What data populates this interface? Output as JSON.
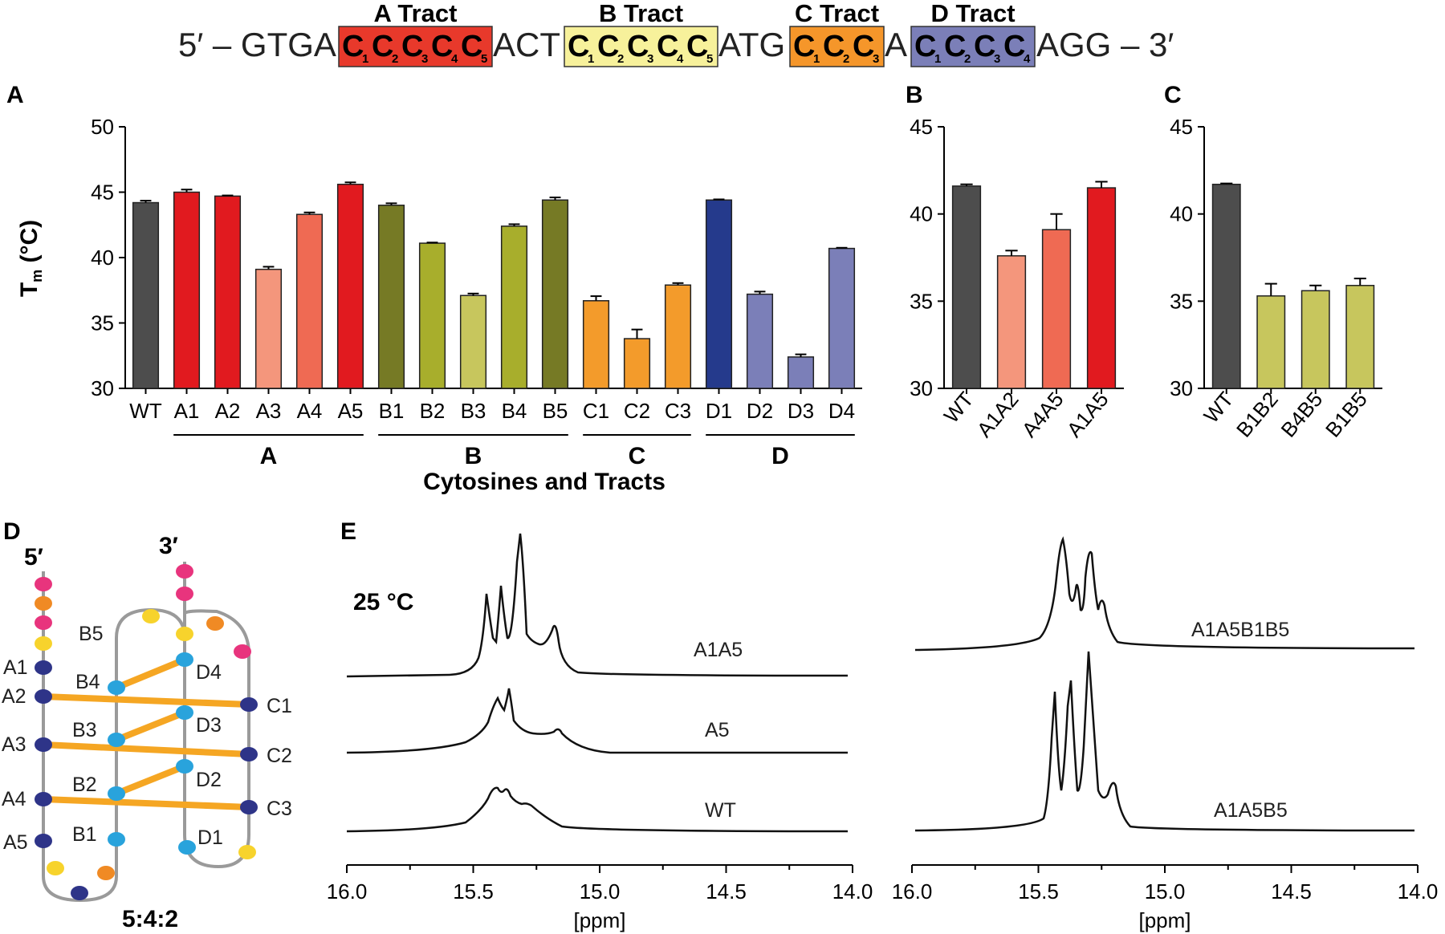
{
  "figure": {
    "sequence": {
      "prefix": "5′ – GTGA",
      "suffix": "AGG – 3′",
      "tracts": [
        {
          "title": "A Tract",
          "color": "#e8392b",
          "count": 5,
          "after": "ACT"
        },
        {
          "title": "B Tract",
          "color": "#f7f19b",
          "count": 5,
          "after": "ATG"
        },
        {
          "title": "C Tract",
          "color": "#f5962a",
          "count": 3,
          "after": "A"
        },
        {
          "title": "D Tract",
          "color": "#7b7fb8",
          "count": 4,
          "after": ""
        }
      ],
      "cytosine_letter": "C"
    },
    "panels": {
      "A": "A",
      "B": "B",
      "C": "C",
      "D": "D",
      "E": "E"
    },
    "diagram": {
      "end5": "5′",
      "end3": "3′",
      "caption": "5:4:2",
      "left_labels": [
        "A1",
        "A2",
        "A3",
        "A4",
        "A5"
      ],
      "mid_labels": [
        "B5",
        "B4",
        "B3",
        "B2",
        "B1"
      ],
      "right_d_labels": [
        "D4",
        "D3",
        "D2",
        "D1"
      ],
      "right_c_labels": [
        "C1",
        "C2",
        "C3"
      ]
    },
    "nmr": {
      "temperature_label": "25 °C",
      "xlabel": "[ppm]",
      "ticks": [
        "16.0",
        "15.5",
        "15.0",
        "14.5",
        "14.0"
      ],
      "left_spectra": [
        "A1A5",
        "A5",
        "WT"
      ],
      "right_spectra": [
        "A1A5B1B5",
        "A1A5B5"
      ]
    }
  },
  "chart_data": [
    {
      "type": "bar",
      "panel": "A",
      "ylabel_main": "T",
      "ylabel_sub": "m",
      "ylabel_rest": " (°C)",
      "xlabel": "Cytosines and Tracts",
      "ylim": [
        30,
        50
      ],
      "yticks": [
        "30",
        "35",
        "40",
        "45",
        "50"
      ],
      "categories": [
        "WT",
        "A1",
        "A2",
        "A3",
        "A4",
        "A5",
        "B1",
        "B2",
        "B3",
        "B4",
        "B5",
        "C1",
        "C2",
        "C3",
        "D1",
        "D2",
        "D3",
        "D4"
      ],
      "values": [
        44.2,
        45.0,
        44.7,
        39.1,
        43.3,
        45.6,
        44.0,
        41.1,
        37.1,
        42.4,
        44.4,
        36.7,
        33.8,
        37.9,
        44.4,
        37.2,
        32.4,
        40.7
      ],
      "errors": [
        0.15,
        0.2,
        0.05,
        0.2,
        0.15,
        0.15,
        0.15,
        0.05,
        0.15,
        0.15,
        0.2,
        0.35,
        0.7,
        0.15,
        0.05,
        0.2,
        0.2,
        0.05
      ],
      "colors": [
        "#4d4d4d",
        "#e11a1f",
        "#e11a1f",
        "#f4967c",
        "#ef6a53",
        "#e11a1f",
        "#767a25",
        "#a8ae2c",
        "#c7c65d",
        "#a8ae2c",
        "#767a25",
        "#f39b2b",
        "#f39b2b",
        "#f39b2b",
        "#253a8c",
        "#7b7fb8",
        "#7b7fb8",
        "#7b7fb8"
      ],
      "groups": [
        {
          "label": "A",
          "from": 1,
          "to": 5
        },
        {
          "label": "B",
          "from": 6,
          "to": 10
        },
        {
          "label": "C",
          "from": 11,
          "to": 13
        },
        {
          "label": "D",
          "from": 14,
          "to": 17
        }
      ]
    },
    {
      "type": "bar",
      "panel": "B",
      "ylim": [
        30,
        45
      ],
      "yticks": [
        "30",
        "35",
        "40",
        "45"
      ],
      "categories": [
        "WT",
        "A1A2",
        "A4A5",
        "A1A5"
      ],
      "values": [
        41.6,
        37.6,
        39.1,
        41.5
      ],
      "errors": [
        0.1,
        0.3,
        0.9,
        0.35
      ],
      "colors": [
        "#4d4d4d",
        "#f4967c",
        "#ef6a53",
        "#e11a1f"
      ]
    },
    {
      "type": "bar",
      "panel": "C",
      "ylim": [
        30,
        45
      ],
      "yticks": [
        "30",
        "35",
        "40",
        "45"
      ],
      "categories": [
        "WT",
        "B1B2",
        "B4B5",
        "B1B5"
      ],
      "values": [
        41.7,
        35.3,
        35.6,
        35.9
      ],
      "errors": [
        0.05,
        0.7,
        0.3,
        0.4
      ],
      "colors": [
        "#4d4d4d",
        "#c7c65d",
        "#c7c65d",
        "#c7c65d"
      ]
    }
  ]
}
